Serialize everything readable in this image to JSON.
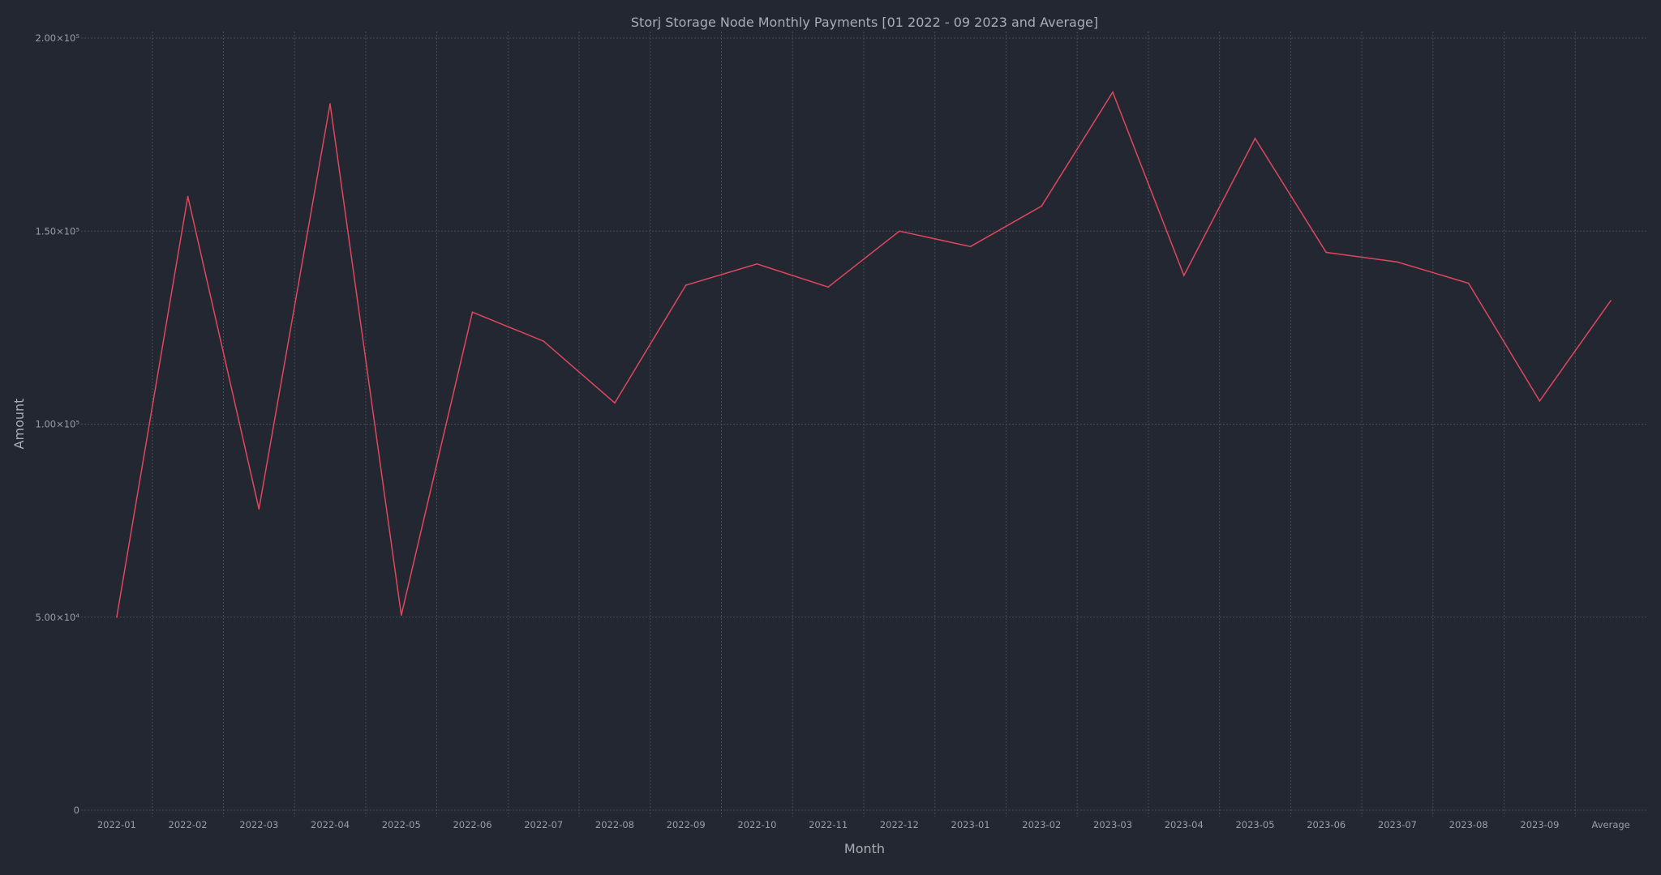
{
  "colors": {
    "background": "#222731",
    "series": "#e0475e",
    "text": "#a9adb4",
    "grid": "#474c56"
  },
  "chart_data": {
    "type": "line",
    "title": "Storj Storage Node Monthly Payments [01 2022 - 09 2023 and Average]",
    "xlabel": "Month",
    "ylabel": "Amount",
    "categories": [
      "2022-01",
      "2022-02",
      "2022-03",
      "2022-04",
      "2022-05",
      "2022-06",
      "2022-07",
      "2022-08",
      "2022-09",
      "2022-10",
      "2022-11",
      "2022-12",
      "2023-01",
      "2023-02",
      "2023-03",
      "2023-04",
      "2023-05",
      "2023-06",
      "2023-07",
      "2023-08",
      "2023-09",
      "Average"
    ],
    "series": [
      {
        "values": [
          50000,
          159000,
          78000,
          183000,
          50500,
          129000,
          121500,
          105500,
          136000,
          141500,
          135500,
          150000,
          146000,
          156500,
          186000,
          138500,
          174000,
          144500,
          142000,
          136500,
          106000,
          132000
        ]
      }
    ],
    "ylim": [
      0,
      200000
    ],
    "yticks": [
      {
        "value": 0,
        "label": "0"
      },
      {
        "value": 50000,
        "label": "5.00×10⁴"
      },
      {
        "value": 100000,
        "label": "1.00×10⁵"
      },
      {
        "value": 150000,
        "label": "1.50×10⁵"
      },
      {
        "value": 200000,
        "label": "2.00×10⁵"
      }
    ],
    "grid": true,
    "legend": "none"
  }
}
